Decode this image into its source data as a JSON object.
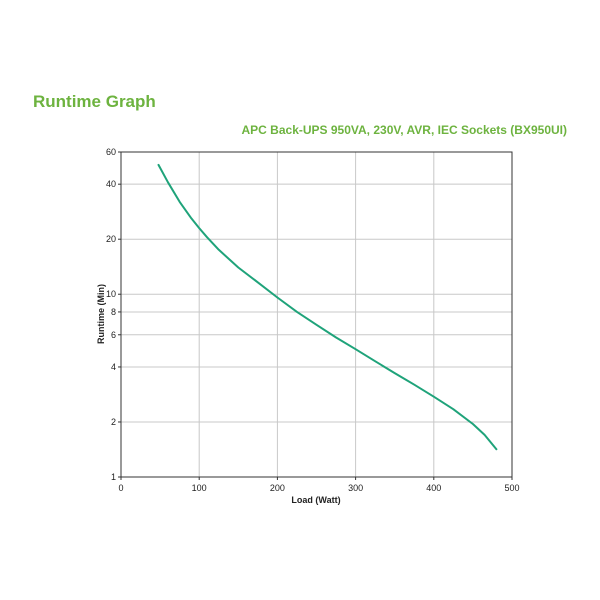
{
  "header": {
    "title": "Runtime Graph",
    "subtitle": "APC Back-UPS 950VA, 230V, AVR, IEC Sockets (BX950UI)"
  },
  "colors": {
    "accent": "#6db33f",
    "series": "#1fa37a",
    "grid": "#c8c8c8",
    "axis": "#333333"
  },
  "chart_data": {
    "type": "line",
    "title": "APC Back-UPS 950VA, 230V, AVR, IEC Sockets (BX950UI)",
    "xlabel": "Load (Watt)",
    "ylabel": "Runtime (Min)",
    "xlim": [
      0,
      500
    ],
    "ylim": [
      1,
      60
    ],
    "yscale": "log",
    "grid": true,
    "legend": "none",
    "x_ticks": [
      0,
      100,
      200,
      300,
      400,
      500
    ],
    "y_ticks": [
      1,
      2,
      4,
      6,
      8,
      10,
      20,
      40,
      60
    ],
    "series": [
      {
        "x": [
          48,
          60,
          75,
          90,
          100,
          110,
          125,
          150,
          175,
          200,
          225,
          250,
          275,
          300,
          325,
          350,
          375,
          400,
          425,
          450,
          465,
          480
        ],
        "y": [
          51,
          41,
          32,
          26,
          23,
          20.5,
          17.5,
          14,
          11.6,
          9.6,
          8.0,
          6.8,
          5.8,
          5.0,
          4.3,
          3.7,
          3.2,
          2.75,
          2.35,
          1.95,
          1.7,
          1.42
        ]
      }
    ]
  }
}
